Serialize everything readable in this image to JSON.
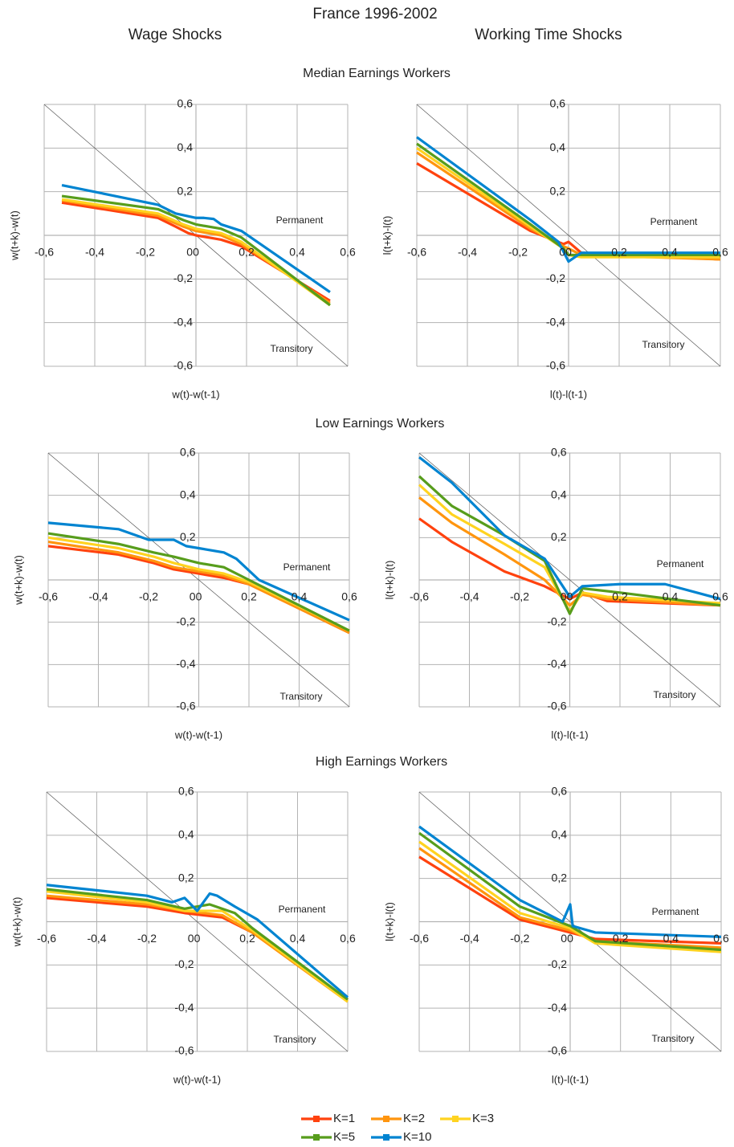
{
  "title": "France 1996-2002",
  "column_titles": [
    "Wage Shocks",
    "Working Time Shocks"
  ],
  "row_titles": [
    "Median Earnings Workers",
    "Low Earnings Workers",
    "High Earnings Workers"
  ],
  "chart_data": [
    {
      "type": "line",
      "xlabel": "w(t)-w(t-1)",
      "ylabel": "w(t+k)-w(t)",
      "grid": true,
      "diagonal": true,
      "annotations": [
        "Permanent",
        "Transitory"
      ],
      "xlim": [
        -0.6,
        0.6
      ],
      "ylim": [
        -0.6,
        0.6
      ],
      "xticks": [
        {
          "value": -0.6,
          "label": "-0,6"
        },
        {
          "value": -0.4,
          "label": "-0,4"
        },
        {
          "value": -0.2,
          "label": "-0,2"
        },
        0,
        {
          "value": 0.2,
          "label": "0,2"
        },
        {
          "value": 0.4,
          "label": "0,4"
        },
        {
          "value": 0.6,
          "label": "0,6"
        }
      ],
      "yticks": [
        {
          "value": -0.6,
          "label": "-0,6"
        },
        {
          "value": -0.4,
          "label": "-0,4"
        },
        {
          "value": -0.2,
          "label": "-0,2"
        },
        0,
        {
          "value": 0.2,
          "label": "0,2"
        },
        {
          "value": 0.4,
          "label": "0,4"
        },
        {
          "value": 0.6,
          "label": "0,6"
        }
      ],
      "series": [
        {
          "name": "K=1",
          "color": "#ff420e",
          "x": [
            -0.53,
            -0.15,
            -0.08,
            -0.03,
            0,
            0.05,
            0.1,
            0.18,
            0.53
          ],
          "values": [
            0.15,
            0.08,
            0.04,
            0.01,
            0,
            -0.01,
            -0.02,
            -0.05,
            -0.3
          ]
        },
        {
          "name": "K=2",
          "color": "#ff950e",
          "x": [
            -0.53,
            -0.15,
            -0.05,
            0,
            0.1,
            0.18,
            0.53
          ],
          "values": [
            0.16,
            0.09,
            0.04,
            0.02,
            0,
            -0.04,
            -0.31
          ]
        },
        {
          "name": "K=3",
          "color": "#ffd320",
          "x": [
            -0.53,
            -0.15,
            -0.05,
            0,
            0.1,
            0.18,
            0.53
          ],
          "values": [
            0.165,
            0.1,
            0.05,
            0.03,
            0.01,
            -0.03,
            -0.32
          ]
        },
        {
          "name": "K=5",
          "color": "#579d1c",
          "x": [
            -0.53,
            -0.15,
            -0.05,
            0,
            0.1,
            0.18,
            0.53
          ],
          "values": [
            0.18,
            0.12,
            0.07,
            0.05,
            0.03,
            -0.01,
            -0.32
          ]
        },
        {
          "name": "K=10",
          "color": "#0084d1",
          "x": [
            -0.53,
            -0.15,
            -0.08,
            -0.02,
            0,
            0.03,
            0.07,
            0.1,
            0.18,
            0.53
          ],
          "values": [
            0.23,
            0.14,
            0.1,
            0.085,
            0.08,
            0.08,
            0.075,
            0.05,
            0.02,
            -0.26
          ]
        }
      ]
    },
    {
      "type": "line",
      "xlabel": "l(t)-l(t-1)",
      "ylabel": "l(t+k)-l(t)",
      "grid": true,
      "diagonal": true,
      "annotations": [
        "Permanent",
        "Transitory"
      ],
      "xlim": [
        -0.6,
        0.6
      ],
      "ylim": [
        -0.6,
        0.6
      ],
      "xticks": [
        {
          "value": -0.6,
          "label": "-0,6"
        },
        {
          "value": -0.4,
          "label": "-0,4"
        },
        {
          "value": -0.2,
          "label": "-0,2"
        },
        0,
        {
          "value": 0.2,
          "label": "0,2"
        },
        {
          "value": 0.4,
          "label": "0,4"
        },
        {
          "value": 0.6,
          "label": "0,6"
        }
      ],
      "yticks": [
        {
          "value": -0.6,
          "label": "-0,6"
        },
        {
          "value": -0.4,
          "label": "-0,4"
        },
        {
          "value": -0.2,
          "label": "-0,2"
        },
        0,
        {
          "value": 0.2,
          "label": "0,2"
        },
        {
          "value": 0.4,
          "label": "0,4"
        },
        {
          "value": 0.6,
          "label": "0,6"
        }
      ],
      "series": [
        {
          "name": "K=1",
          "color": "#ff420e",
          "x": [
            -0.6,
            -0.15,
            -0.02,
            0,
            0.05,
            0.6
          ],
          "values": [
            0.33,
            0.02,
            -0.04,
            -0.03,
            -0.08,
            -0.11
          ]
        },
        {
          "name": "K=2",
          "color": "#ff950e",
          "x": [
            -0.6,
            -0.15,
            -0.02,
            0,
            0.05,
            0.6
          ],
          "values": [
            0.38,
            0.03,
            -0.05,
            -0.06,
            -0.09,
            -0.11
          ]
        },
        {
          "name": "K=3",
          "color": "#ffd320",
          "x": [
            -0.6,
            -0.15,
            -0.02,
            0,
            0.05,
            0.6
          ],
          "values": [
            0.4,
            0.04,
            -0.06,
            -0.09,
            -0.1,
            -0.1
          ]
        },
        {
          "name": "K=5",
          "color": "#579d1c",
          "x": [
            -0.6,
            -0.15,
            -0.02,
            0,
            0.05,
            0.6
          ],
          "values": [
            0.42,
            0.05,
            -0.06,
            -0.09,
            -0.09,
            -0.09
          ]
        },
        {
          "name": "K=10",
          "color": "#0084d1",
          "x": [
            -0.6,
            -0.15,
            -0.04,
            0,
            0.05,
            0.6
          ],
          "values": [
            0.45,
            0.07,
            -0.03,
            -0.12,
            -0.08,
            -0.08
          ]
        }
      ]
    },
    {
      "type": "line",
      "xlabel": "w(t)-w(t-1)",
      "ylabel": "w(t+k)-w(t)",
      "grid": true,
      "diagonal": true,
      "annotations": [
        "Permanent",
        "Transitory"
      ],
      "xlim": [
        -0.6,
        0.6
      ],
      "ylim": [
        -0.6,
        0.6
      ],
      "xticks": [
        {
          "value": -0.6,
          "label": "-0,6"
        },
        {
          "value": -0.4,
          "label": "-0,4"
        },
        {
          "value": -0.2,
          "label": "-0,2"
        },
        0,
        {
          "value": 0.2,
          "label": "0,2"
        },
        {
          "value": 0.4,
          "label": "0,4"
        },
        {
          "value": 0.6,
          "label": "0,6"
        }
      ],
      "yticks": [
        {
          "value": -0.6,
          "label": "-0,6"
        },
        {
          "value": -0.4,
          "label": "-0,4"
        },
        {
          "value": -0.2,
          "label": "-0,2"
        },
        0,
        {
          "value": 0.2,
          "label": "0,2"
        },
        {
          "value": 0.4,
          "label": "0,4"
        },
        {
          "value": 0.6,
          "label": "0,6"
        }
      ],
      "series": [
        {
          "name": "K=1",
          "color": "#ff420e",
          "x": [
            -0.6,
            -0.32,
            -0.18,
            -0.1,
            0,
            0.1,
            0.2,
            0.6
          ],
          "values": [
            0.16,
            0.12,
            0.08,
            0.05,
            0.03,
            0.01,
            -0.02,
            -0.25
          ]
        },
        {
          "name": "K=2",
          "color": "#ff950e",
          "x": [
            -0.6,
            -0.32,
            -0.18,
            -0.1,
            0,
            0.1,
            0.2,
            0.6
          ],
          "values": [
            0.18,
            0.13,
            0.09,
            0.06,
            0.04,
            0.02,
            -0.02,
            -0.25
          ]
        },
        {
          "name": "K=3",
          "color": "#ffd320",
          "x": [
            -0.6,
            -0.32,
            -0.18,
            -0.1,
            0,
            0.1,
            0.2,
            0.6
          ],
          "values": [
            0.2,
            0.15,
            0.11,
            0.08,
            0.05,
            0.03,
            -0.01,
            -0.24
          ]
        },
        {
          "name": "K=5",
          "color": "#579d1c",
          "x": [
            -0.6,
            -0.32,
            -0.18,
            -0.1,
            0,
            0.1,
            0.2,
            0.6
          ],
          "values": [
            0.22,
            0.17,
            0.13,
            0.11,
            0.08,
            0.06,
            0,
            -0.24
          ]
        },
        {
          "name": "K=10",
          "color": "#0084d1",
          "x": [
            -0.6,
            -0.32,
            -0.2,
            -0.1,
            -0.05,
            0,
            0.1,
            0.15,
            0.24,
            0.6
          ],
          "values": [
            0.27,
            0.24,
            0.19,
            0.19,
            0.16,
            0.15,
            0.13,
            0.1,
            0,
            -0.19
          ]
        }
      ]
    },
    {
      "type": "line",
      "xlabel": "l(t)-l(t-1)",
      "ylabel": "l(t+k)-l(t)",
      "grid": true,
      "diagonal": true,
      "annotations": [
        "Permanent",
        "Transitory"
      ],
      "xlim": [
        -0.6,
        0.6
      ],
      "ylim": [
        -0.6,
        0.6
      ],
      "xticks": [
        {
          "value": -0.6,
          "label": "-0,6"
        },
        {
          "value": -0.4,
          "label": "-0,4"
        },
        {
          "value": -0.2,
          "label": "-0,2"
        },
        0,
        {
          "value": 0.2,
          "label": "0,2"
        },
        {
          "value": 0.4,
          "label": "0,4"
        },
        {
          "value": 0.6,
          "label": "0,6"
        }
      ],
      "yticks": [
        {
          "value": -0.6,
          "label": "-0,6"
        },
        {
          "value": -0.4,
          "label": "-0,4"
        },
        {
          "value": -0.2,
          "label": "-0,2"
        },
        0,
        {
          "value": 0.2,
          "label": "0,2"
        },
        {
          "value": 0.4,
          "label": "0,4"
        },
        {
          "value": 0.6,
          "label": "0,6"
        }
      ],
      "series": [
        {
          "name": "K=1",
          "color": "#ff420e",
          "x": [
            -0.6,
            -0.47,
            -0.26,
            -0.1,
            0,
            0.05,
            0.15,
            0.6
          ],
          "values": [
            0.29,
            0.18,
            0.04,
            -0.03,
            -0.09,
            -0.06,
            -0.1,
            -0.12
          ]
        },
        {
          "name": "K=2",
          "color": "#ff950e",
          "x": [
            -0.6,
            -0.47,
            -0.26,
            -0.1,
            0,
            0.05,
            0.15,
            0.6
          ],
          "values": [
            0.39,
            0.27,
            0.12,
            0,
            -0.12,
            -0.07,
            -0.09,
            -0.12
          ]
        },
        {
          "name": "K=3",
          "color": "#ffd320",
          "x": [
            -0.6,
            -0.47,
            -0.26,
            -0.1,
            0,
            0.05,
            0.15,
            0.6
          ],
          "values": [
            0.45,
            0.31,
            0.17,
            0.06,
            -0.15,
            -0.06,
            -0.08,
            -0.11
          ]
        },
        {
          "name": "K=5",
          "color": "#579d1c",
          "x": [
            -0.6,
            -0.47,
            -0.26,
            -0.1,
            0,
            0.05,
            0.2,
            0.6
          ],
          "values": [
            0.49,
            0.35,
            0.21,
            0.09,
            -0.16,
            -0.04,
            -0.06,
            -0.12
          ]
        },
        {
          "name": "K=10",
          "color": "#0084d1",
          "x": [
            -0.6,
            -0.47,
            -0.26,
            -0.1,
            0,
            0.05,
            0.2,
            0.38,
            0.6
          ],
          "values": [
            0.58,
            0.46,
            0.21,
            0.1,
            -0.08,
            -0.03,
            -0.02,
            -0.02,
            -0.09
          ]
        }
      ]
    },
    {
      "type": "line",
      "xlabel": "w(t)-w(t-1)",
      "ylabel": "w(t+k)-w(t)",
      "grid": true,
      "diagonal": true,
      "annotations": [
        "Permanent",
        "Transitory"
      ],
      "xlim": [
        -0.6,
        0.6
      ],
      "ylim": [
        -0.6,
        0.6
      ],
      "xticks": [
        {
          "value": -0.6,
          "label": "-0,6"
        },
        {
          "value": -0.4,
          "label": "-0,4"
        },
        {
          "value": -0.2,
          "label": "-0,2"
        },
        0,
        {
          "value": 0.2,
          "label": "0,2"
        },
        {
          "value": 0.4,
          "label": "0,4"
        },
        {
          "value": 0.6,
          "label": "0,6"
        }
      ],
      "yticks": [
        {
          "value": -0.6,
          "label": "-0,6"
        },
        {
          "value": -0.4,
          "label": "-0,4"
        },
        {
          "value": -0.2,
          "label": "-0,2"
        },
        0,
        {
          "value": 0.2,
          "label": "0,2"
        },
        {
          "value": 0.4,
          "label": "0,4"
        },
        {
          "value": 0.6,
          "label": "0,6"
        }
      ],
      "series": [
        {
          "name": "K=1",
          "color": "#ff420e",
          "x": [
            -0.6,
            -0.2,
            -0.05,
            0.1,
            0.22,
            0.6
          ],
          "values": [
            0.11,
            0.07,
            0.04,
            0.02,
            -0.05,
            -0.36
          ]
        },
        {
          "name": "K=2",
          "color": "#ff950e",
          "x": [
            -0.6,
            -0.2,
            -0.05,
            0.1,
            0.22,
            0.6
          ],
          "values": [
            0.12,
            0.08,
            0.05,
            0.03,
            -0.05,
            -0.37
          ]
        },
        {
          "name": "K=3",
          "color": "#ffd320",
          "x": [
            -0.6,
            -0.2,
            -0.05,
            0.1,
            0.22,
            0.6
          ],
          "values": [
            0.14,
            0.09,
            0.05,
            0.05,
            -0.04,
            -0.37
          ]
        },
        {
          "name": "K=5",
          "color": "#579d1c",
          "x": [
            -0.6,
            -0.2,
            -0.05,
            0.05,
            0.15,
            0.22,
            0.6
          ],
          "values": [
            0.15,
            0.1,
            0.06,
            0.08,
            0.04,
            -0.03,
            -0.36
          ]
        },
        {
          "name": "K=10",
          "color": "#0084d1",
          "x": [
            -0.6,
            -0.2,
            -0.1,
            -0.05,
            0,
            0.05,
            0.08,
            0.15,
            0.24,
            0.6
          ],
          "values": [
            0.17,
            0.12,
            0.09,
            0.11,
            0.05,
            0.13,
            0.12,
            0.07,
            0.01,
            -0.35
          ]
        }
      ]
    },
    {
      "type": "line",
      "xlabel": "l(t)-l(t-1)",
      "ylabel": "l(t+k)-l(t)",
      "grid": true,
      "diagonal": true,
      "annotations": [
        "Permanent",
        "Transitory"
      ],
      "xlim": [
        -0.6,
        0.6
      ],
      "ylim": [
        -0.6,
        0.6
      ],
      "xticks": [
        {
          "value": -0.6,
          "label": "-0,6"
        },
        {
          "value": -0.4,
          "label": "-0,4"
        },
        {
          "value": -0.2,
          "label": "-0,2"
        },
        0,
        {
          "value": 0.2,
          "label": "0,2"
        },
        {
          "value": 0.4,
          "label": "0,4"
        },
        {
          "value": 0.6,
          "label": "0,6"
        }
      ],
      "yticks": [
        {
          "value": -0.6,
          "label": "-0,6"
        },
        {
          "value": -0.4,
          "label": "-0,4"
        },
        {
          "value": -0.2,
          "label": "-0,2"
        },
        0,
        {
          "value": 0.2,
          "label": "0,2"
        },
        {
          "value": 0.4,
          "label": "0,4"
        },
        {
          "value": 0.6,
          "label": "0,6"
        }
      ],
      "series": [
        {
          "name": "K=1",
          "color": "#ff420e",
          "x": [
            -0.6,
            -0.2,
            0,
            0.1,
            0.6
          ],
          "values": [
            0.3,
            0.01,
            -0.05,
            -0.08,
            -0.1
          ]
        },
        {
          "name": "K=2",
          "color": "#ff950e",
          "x": [
            -0.6,
            -0.2,
            0,
            0.1,
            0.6
          ],
          "values": [
            0.34,
            0.02,
            -0.04,
            -0.09,
            -0.12
          ]
        },
        {
          "name": "K=3",
          "color": "#ffd320",
          "x": [
            -0.6,
            -0.2,
            0,
            0.1,
            0.6
          ],
          "values": [
            0.37,
            0.04,
            -0.03,
            -0.1,
            -0.14
          ]
        },
        {
          "name": "K=5",
          "color": "#579d1c",
          "x": [
            -0.6,
            -0.2,
            0,
            0.1,
            0.6
          ],
          "values": [
            0.41,
            0.07,
            -0.02,
            -0.09,
            -0.13
          ]
        },
        {
          "name": "K=10",
          "color": "#0084d1",
          "x": [
            -0.6,
            -0.2,
            -0.03,
            0,
            0.01,
            0.1,
            0.6
          ],
          "values": [
            0.44,
            0.1,
            0,
            0.08,
            -0.02,
            -0.05,
            -0.07
          ]
        }
      ]
    }
  ]
}
